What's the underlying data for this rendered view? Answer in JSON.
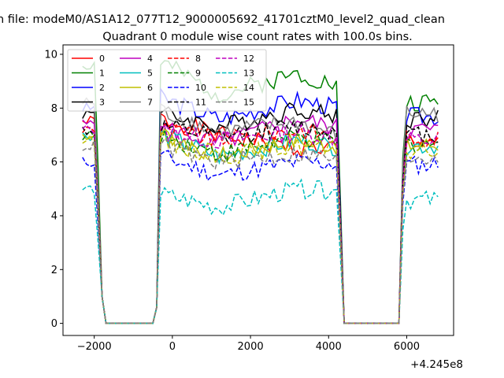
{
  "chart_data": {
    "type": "line",
    "suptitle": "n file: modeM0/AS1A12_077T12_9000005692_41701cztM0_level2_quad_clean",
    "title": "Quadrant 0 module wise count rates with 100.0s bins.",
    "xlabel": "",
    "ylabel": "",
    "x_offset_label": "+4.245e8",
    "xlim": [
      -2800,
      7200
    ],
    "ylim": [
      -0.45,
      10.35
    ],
    "x_ticks": [
      -2000,
      0,
      2000,
      4000,
      6000
    ],
    "x_tick_labels": [
      "−2000",
      "0",
      "2000",
      "4000",
      "6000"
    ],
    "y_ticks": [
      0,
      2,
      4,
      6,
      8,
      10
    ],
    "y_tick_labels": [
      "0",
      "2",
      "4",
      "6",
      "8",
      "10"
    ],
    "grid": false,
    "legend_placement": "upper-left",
    "legend_columns": 4,
    "x": [
      -2300,
      -2200,
      -2100,
      -2000,
      -1900,
      -1800,
      -1700,
      -500,
      -400,
      -300,
      -200,
      -100,
      0,
      100,
      200,
      300,
      400,
      500,
      600,
      700,
      800,
      900,
      1000,
      1100,
      1200,
      1300,
      1400,
      1500,
      1600,
      1700,
      1800,
      1900,
      2000,
      2100,
      2200,
      2300,
      2400,
      2500,
      2600,
      2700,
      2800,
      2900,
      3000,
      3100,
      3200,
      3300,
      3400,
      3500,
      3600,
      3700,
      3800,
      3900,
      4000,
      4100,
      4200,
      4300,
      4400,
      5800,
      5900,
      6000,
      6100,
      6200,
      6300,
      6400,
      6500,
      6600,
      6700,
      6800
    ],
    "series": [
      {
        "name": "0",
        "color": "#ff0000",
        "dash": "solid",
        "plateau": [
          7.5,
          7.6,
          7.0,
          6.6,
          6.5,
          6.8
        ],
        "seed": 1
      },
      {
        "name": "1",
        "color": "#008000",
        "dash": "solid",
        "plateau": [
          9.6,
          9.7,
          8.5,
          7.8,
          9.3,
          8.2
        ],
        "seed": 2
      },
      {
        "name": "2",
        "color": "#0000ff",
        "dash": "solid",
        "plateau": [
          8.0,
          8.4,
          7.6,
          7.4,
          8.3,
          7.7
        ],
        "seed": 3
      },
      {
        "name": "3",
        "color": "#000000",
        "dash": "solid",
        "plateau": [
          7.8,
          7.8,
          7.3,
          7.0,
          8.0,
          7.6
        ],
        "seed": 4
      },
      {
        "name": "4",
        "color": "#bf00bf",
        "dash": "solid",
        "plateau": [
          7.4,
          7.3,
          6.7,
          6.5,
          7.6,
          7.2
        ],
        "seed": 5
      },
      {
        "name": "5",
        "color": "#00bfbf",
        "dash": "solid",
        "plateau": [
          7.0,
          7.0,
          6.2,
          6.0,
          6.8,
          6.6
        ],
        "seed": 6
      },
      {
        "name": "6",
        "color": "#bfbf00",
        "dash": "solid",
        "plateau": [
          7.0,
          7.1,
          6.2,
          6.0,
          6.8,
          6.6
        ],
        "seed": 7
      },
      {
        "name": "7",
        "color": "#808080",
        "dash": "solid",
        "plateau": [
          8.2,
          7.9,
          7.1,
          5.8,
          7.5,
          7.8
        ],
        "seed": 8
      },
      {
        "name": "8",
        "color": "#ff0000",
        "dash": "dashed",
        "plateau": [
          7.2,
          7.2,
          6.8,
          6.5,
          7.2,
          6.9
        ],
        "seed": 9
      },
      {
        "name": "9",
        "color": "#008000",
        "dash": "dashed",
        "plateau": [
          7.0,
          7.0,
          6.3,
          6.1,
          6.9,
          6.7
        ],
        "seed": 10
      },
      {
        "name": "10",
        "color": "#0000ff",
        "dash": "dashed",
        "plateau": [
          6.0,
          6.2,
          5.5,
          5.8,
          6.0,
          5.9
        ],
        "seed": 11
      },
      {
        "name": "11",
        "color": "#000000",
        "dash": "dashed",
        "plateau": [
          7.2,
          7.3,
          6.9,
          6.7,
          7.3,
          7.0
        ],
        "seed": 12
      },
      {
        "name": "12",
        "color": "#bf00bf",
        "dash": "dashed",
        "plateau": [
          7.2,
          7.1,
          6.8,
          6.4,
          7.1,
          6.8
        ],
        "seed": 13
      },
      {
        "name": "13",
        "color": "#00bfbf",
        "dash": "dashed",
        "plateau": [
          5.0,
          4.8,
          4.3,
          4.7,
          5.0,
          4.6
        ],
        "seed": 14
      },
      {
        "name": "14",
        "color": "#bfbf00",
        "dash": "dashed",
        "plateau": [
          6.8,
          6.8,
          6.2,
          6.0,
          6.6,
          6.4
        ],
        "seed": 15
      },
      {
        "name": "15",
        "color": "#808080",
        "dash": "dashed",
        "plateau": [
          6.6,
          6.6,
          6.0,
          5.7,
          6.3,
          6.2
        ],
        "seed": 16
      }
    ]
  }
}
